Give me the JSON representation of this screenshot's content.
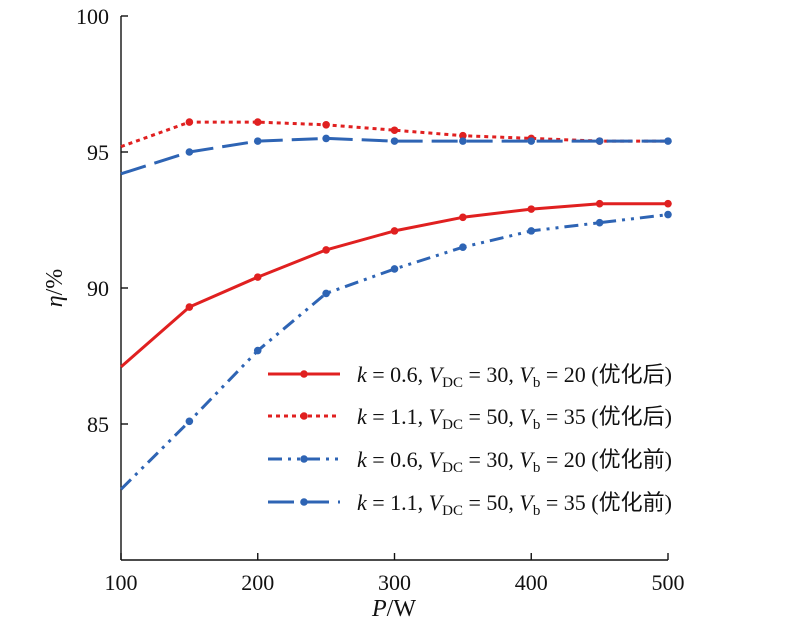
{
  "chart_data": {
    "type": "line",
    "xlabel_var": "P",
    "xlabel_unit": "/W",
    "ylabel_var": "η",
    "ylabel_unit": "/%",
    "xlim": [
      100,
      500
    ],
    "ylim": [
      80,
      100
    ],
    "xticks": [
      100,
      200,
      300,
      400,
      500
    ],
    "yticks": [
      85,
      90,
      95,
      100
    ],
    "grid": false,
    "legend_position": "bottom-right",
    "x": [
      100,
      150,
      200,
      250,
      300,
      350,
      400,
      450,
      500
    ],
    "series": [
      {
        "name": "k = 0.6, V_DC = 30, V_b = 20 (优化后)",
        "label_parts": {
          "k": "0.6",
          "vdc": "30",
          "vb": "20",
          "suffix": "(优化后)"
        },
        "style": "solid",
        "color": "#e02020",
        "values": [
          87.1,
          89.3,
          90.4,
          91.4,
          92.1,
          92.6,
          92.9,
          93.1,
          93.1
        ],
        "markers": [
          false,
          true,
          true,
          true,
          true,
          true,
          true,
          true,
          true
        ]
      },
      {
        "name": "k = 1.1, V_DC = 50, V_b = 35 (优化后)",
        "label_parts": {
          "k": "1.1",
          "vdc": "50",
          "vb": "35",
          "suffix": "(优化后)"
        },
        "style": "dotted",
        "color": "#e02020",
        "values": [
          95.2,
          96.1,
          96.1,
          96.0,
          95.8,
          95.6,
          95.5,
          95.4,
          95.4
        ],
        "markers": [
          false,
          true,
          true,
          true,
          true,
          true,
          true,
          true,
          false
        ]
      },
      {
        "name": "k = 0.6, V_DC = 30, V_b = 20 (优化前)",
        "label_parts": {
          "k": "0.6",
          "vdc": "30",
          "vb": "20",
          "suffix": "(优化前)"
        },
        "style": "dashdotdot",
        "color": "#2e64b4",
        "values": [
          82.6,
          85.1,
          87.7,
          89.8,
          90.7,
          91.5,
          92.1,
          92.4,
          92.7
        ],
        "markers": [
          false,
          true,
          true,
          true,
          true,
          true,
          true,
          true,
          true
        ]
      },
      {
        "name": "k = 1.1, V_DC = 50, V_b = 35 (优化前)",
        "label_parts": {
          "k": "1.1",
          "vdc": "50",
          "vb": "35",
          "suffix": "(优化前)"
        },
        "style": "longdash",
        "color": "#2e64b4",
        "values": [
          94.2,
          95.0,
          95.4,
          95.5,
          95.4,
          95.4,
          95.4,
          95.4,
          95.4
        ],
        "markers": [
          false,
          true,
          true,
          true,
          true,
          true,
          true,
          true,
          true
        ]
      }
    ]
  }
}
